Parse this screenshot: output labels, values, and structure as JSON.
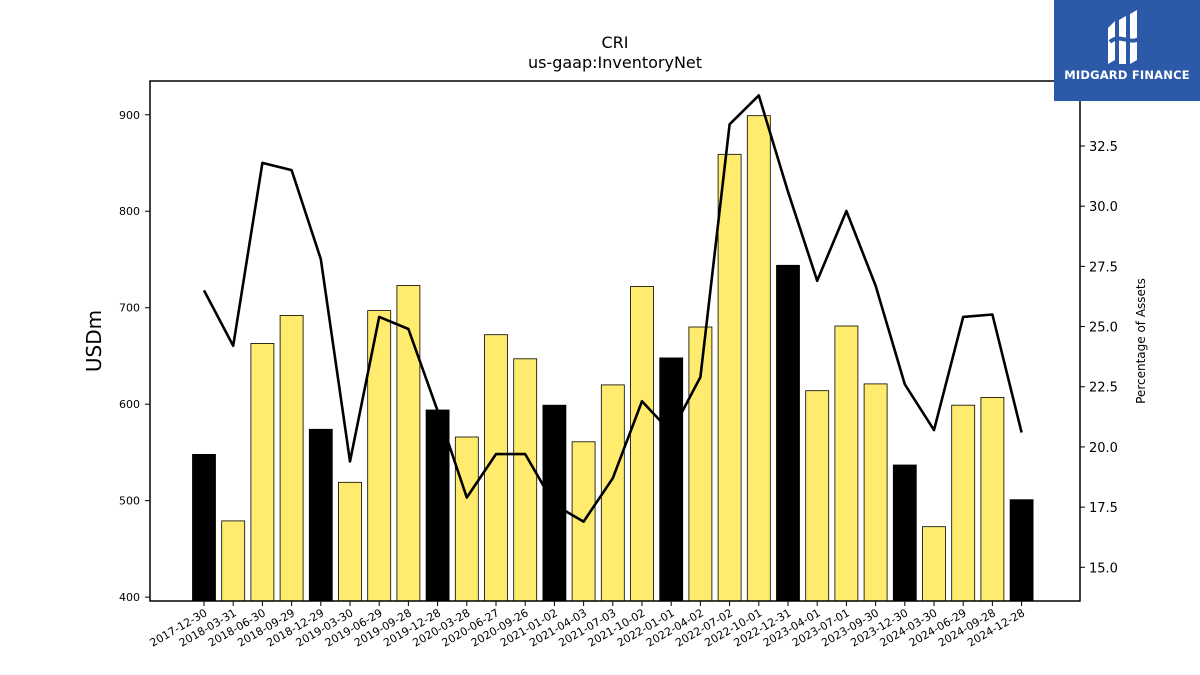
{
  "brand": {
    "logo_text": "MIDGARD FINANCE",
    "bg_color": "#2d5aa8"
  },
  "chart_data": {
    "type": "bar",
    "title": "CRI",
    "subtitle": "us-gaap:InventoryNet",
    "ylabel": "USDm",
    "y2label": "Percentage of Assets",
    "ylim": [
      396,
      935
    ],
    "y2lim": [
      13.6,
      35.2
    ],
    "yticks": [
      400,
      500,
      600,
      700,
      800,
      900
    ],
    "y2ticks": [
      15.0,
      17.5,
      20.0,
      22.5,
      25.0,
      27.5,
      30.0,
      32.5
    ],
    "y2tick_labels": [
      "15.0",
      "17.5",
      "20.0",
      "22.5",
      "25.0",
      "27.5",
      "30.0",
      "32.5"
    ],
    "categories": [
      "2017-12-30",
      "2018-03-31",
      "2018-06-30",
      "2018-09-29",
      "2018-12-29",
      "2019-03-30",
      "2019-06-29",
      "2019-09-28",
      "2019-12-28",
      "2020-03-28",
      "2020-06-27",
      "2020-09-26",
      "2021-01-02",
      "2021-04-03",
      "2021-07-03",
      "2021-10-02",
      "2022-01-01",
      "2022-04-02",
      "2022-07-02",
      "2022-10-01",
      "2022-12-31",
      "2023-04-01",
      "2023-07-01",
      "2023-09-30",
      "2023-12-30",
      "2024-03-30",
      "2024-06-29",
      "2024-09-28",
      "2024-12-28"
    ],
    "series": [
      {
        "type": "bar",
        "axis": "left",
        "values": [
          548,
          479,
          663,
          692,
          574,
          519,
          697,
          723,
          594,
          566,
          672,
          647,
          599,
          561,
          620,
          722,
          648,
          680,
          859,
          899,
          744,
          614,
          681,
          621,
          537,
          473,
          599,
          607,
          501
        ],
        "highlight_year_end": [
          true,
          false,
          false,
          false,
          true,
          false,
          false,
          false,
          true,
          false,
          false,
          false,
          true,
          false,
          false,
          false,
          true,
          false,
          false,
          false,
          true,
          false,
          false,
          false,
          true,
          false,
          false,
          false,
          true
        ]
      },
      {
        "type": "line",
        "axis": "right",
        "values": [
          26.5,
          24.2,
          31.8,
          31.5,
          27.8,
          19.4,
          25.4,
          24.9,
          21.5,
          17.9,
          19.7,
          19.7,
          17.6,
          16.9,
          18.7,
          21.9,
          20.6,
          22.9,
          33.4,
          34.6,
          30.6,
          26.9,
          29.8,
          26.7,
          22.6,
          20.7,
          25.4,
          25.5,
          20.6
        ]
      }
    ],
    "colors": {
      "bar_year_end": "#000000",
      "bar_quarter": "#ffec6e",
      "line": "#000000"
    },
    "grid": false,
    "legend": "none"
  }
}
